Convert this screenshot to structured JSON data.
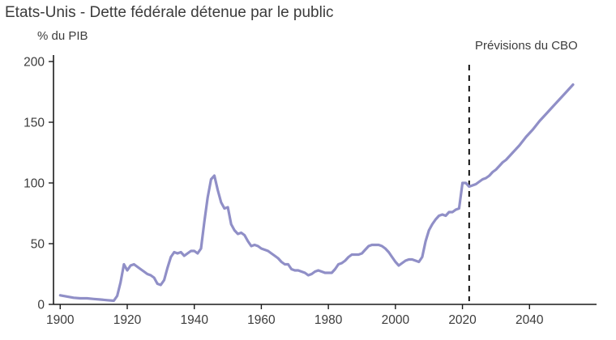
{
  "chart_data": {
    "type": "line",
    "title": "Etats-Unis - Dette fédérale détenue par le public",
    "ylabel": "% du PIB",
    "xlabel": "",
    "annotation": "Prévisions du CBO",
    "xlim": [
      1898,
      2060
    ],
    "ylim": [
      0,
      200
    ],
    "x_ticks": [
      1900,
      1920,
      1940,
      1960,
      1980,
      2000,
      2020,
      2040
    ],
    "y_ticks": [
      0,
      50,
      100,
      150,
      200
    ],
    "grid": false,
    "legend": "none",
    "line_color": "#908fc7",
    "axis_color": "#1a1a1a",
    "text_color": "#3c3c3c",
    "forecast_start_year": 2022,
    "forecast_line_style": "dashed",
    "series": [
      {
        "name": "Dette fédérale détenue par le public (% du PIB)",
        "points": [
          [
            1900,
            7.5
          ],
          [
            1902,
            6.5
          ],
          [
            1904,
            5.5
          ],
          [
            1906,
            5
          ],
          [
            1908,
            5
          ],
          [
            1910,
            4.5
          ],
          [
            1912,
            4
          ],
          [
            1914,
            3.5
          ],
          [
            1916,
            3
          ],
          [
            1917,
            7
          ],
          [
            1918,
            18
          ],
          [
            1919,
            33
          ],
          [
            1920,
            28
          ],
          [
            1921,
            32
          ],
          [
            1922,
            33
          ],
          [
            1923,
            31
          ],
          [
            1924,
            29
          ],
          [
            1925,
            27
          ],
          [
            1926,
            25
          ],
          [
            1927,
            24
          ],
          [
            1928,
            22
          ],
          [
            1929,
            17
          ],
          [
            1930,
            16
          ],
          [
            1931,
            20
          ],
          [
            1932,
            30
          ],
          [
            1933,
            39
          ],
          [
            1934,
            43
          ],
          [
            1935,
            42
          ],
          [
            1936,
            43
          ],
          [
            1937,
            40
          ],
          [
            1938,
            42
          ],
          [
            1939,
            44
          ],
          [
            1940,
            44
          ],
          [
            1941,
            42
          ],
          [
            1942,
            46
          ],
          [
            1943,
            68
          ],
          [
            1944,
            88
          ],
          [
            1945,
            103
          ],
          [
            1946,
            106
          ],
          [
            1947,
            94
          ],
          [
            1948,
            84
          ],
          [
            1949,
            79
          ],
          [
            1950,
            80
          ],
          [
            1951,
            66
          ],
          [
            1952,
            61
          ],
          [
            1953,
            58
          ],
          [
            1954,
            59
          ],
          [
            1955,
            57
          ],
          [
            1956,
            52
          ],
          [
            1957,
            48
          ],
          [
            1958,
            49
          ],
          [
            1959,
            48
          ],
          [
            1960,
            46
          ],
          [
            1961,
            45
          ],
          [
            1962,
            44
          ],
          [
            1963,
            42
          ],
          [
            1964,
            40
          ],
          [
            1965,
            38
          ],
          [
            1966,
            35
          ],
          [
            1967,
            33
          ],
          [
            1968,
            33
          ],
          [
            1969,
            29
          ],
          [
            1970,
            28
          ],
          [
            1971,
            28
          ],
          [
            1972,
            27
          ],
          [
            1973,
            26
          ],
          [
            1974,
            24
          ],
          [
            1975,
            25
          ],
          [
            1976,
            27
          ],
          [
            1977,
            28
          ],
          [
            1978,
            27
          ],
          [
            1979,
            26
          ],
          [
            1980,
            26
          ],
          [
            1981,
            26
          ],
          [
            1982,
            29
          ],
          [
            1983,
            33
          ],
          [
            1984,
            34
          ],
          [
            1985,
            36
          ],
          [
            1986,
            39
          ],
          [
            1987,
            41
          ],
          [
            1988,
            41
          ],
          [
            1989,
            41
          ],
          [
            1990,
            42
          ],
          [
            1991,
            45
          ],
          [
            1992,
            48
          ],
          [
            1993,
            49
          ],
          [
            1994,
            49
          ],
          [
            1995,
            49
          ],
          [
            1996,
            48
          ],
          [
            1997,
            46
          ],
          [
            1998,
            43
          ],
          [
            1999,
            39
          ],
          [
            2000,
            35
          ],
          [
            2001,
            32
          ],
          [
            2002,
            34
          ],
          [
            2003,
            36
          ],
          [
            2004,
            37
          ],
          [
            2005,
            37
          ],
          [
            2006,
            36
          ],
          [
            2007,
            35
          ],
          [
            2008,
            39
          ],
          [
            2009,
            52
          ],
          [
            2010,
            61
          ],
          [
            2011,
            66
          ],
          [
            2012,
            70
          ],
          [
            2013,
            73
          ],
          [
            2014,
            74
          ],
          [
            2015,
            73
          ],
          [
            2016,
            76
          ],
          [
            2017,
            76
          ],
          [
            2018,
            78
          ],
          [
            2019,
            79
          ],
          [
            2020,
            100
          ],
          [
            2021,
            100
          ],
          [
            2022,
            97
          ],
          [
            2023,
            98
          ],
          [
            2024,
            99
          ],
          [
            2025,
            101
          ],
          [
            2026,
            103
          ],
          [
            2027,
            104
          ],
          [
            2028,
            106
          ],
          [
            2029,
            109
          ],
          [
            2030,
            111
          ],
          [
            2031,
            114
          ],
          [
            2032,
            117
          ],
          [
            2033,
            119
          ],
          [
            2035,
            125
          ],
          [
            2037,
            131
          ],
          [
            2039,
            138
          ],
          [
            2041,
            144
          ],
          [
            2043,
            151
          ],
          [
            2045,
            157
          ],
          [
            2047,
            163
          ],
          [
            2049,
            169
          ],
          [
            2051,
            175
          ],
          [
            2053,
            181
          ]
        ]
      }
    ]
  }
}
